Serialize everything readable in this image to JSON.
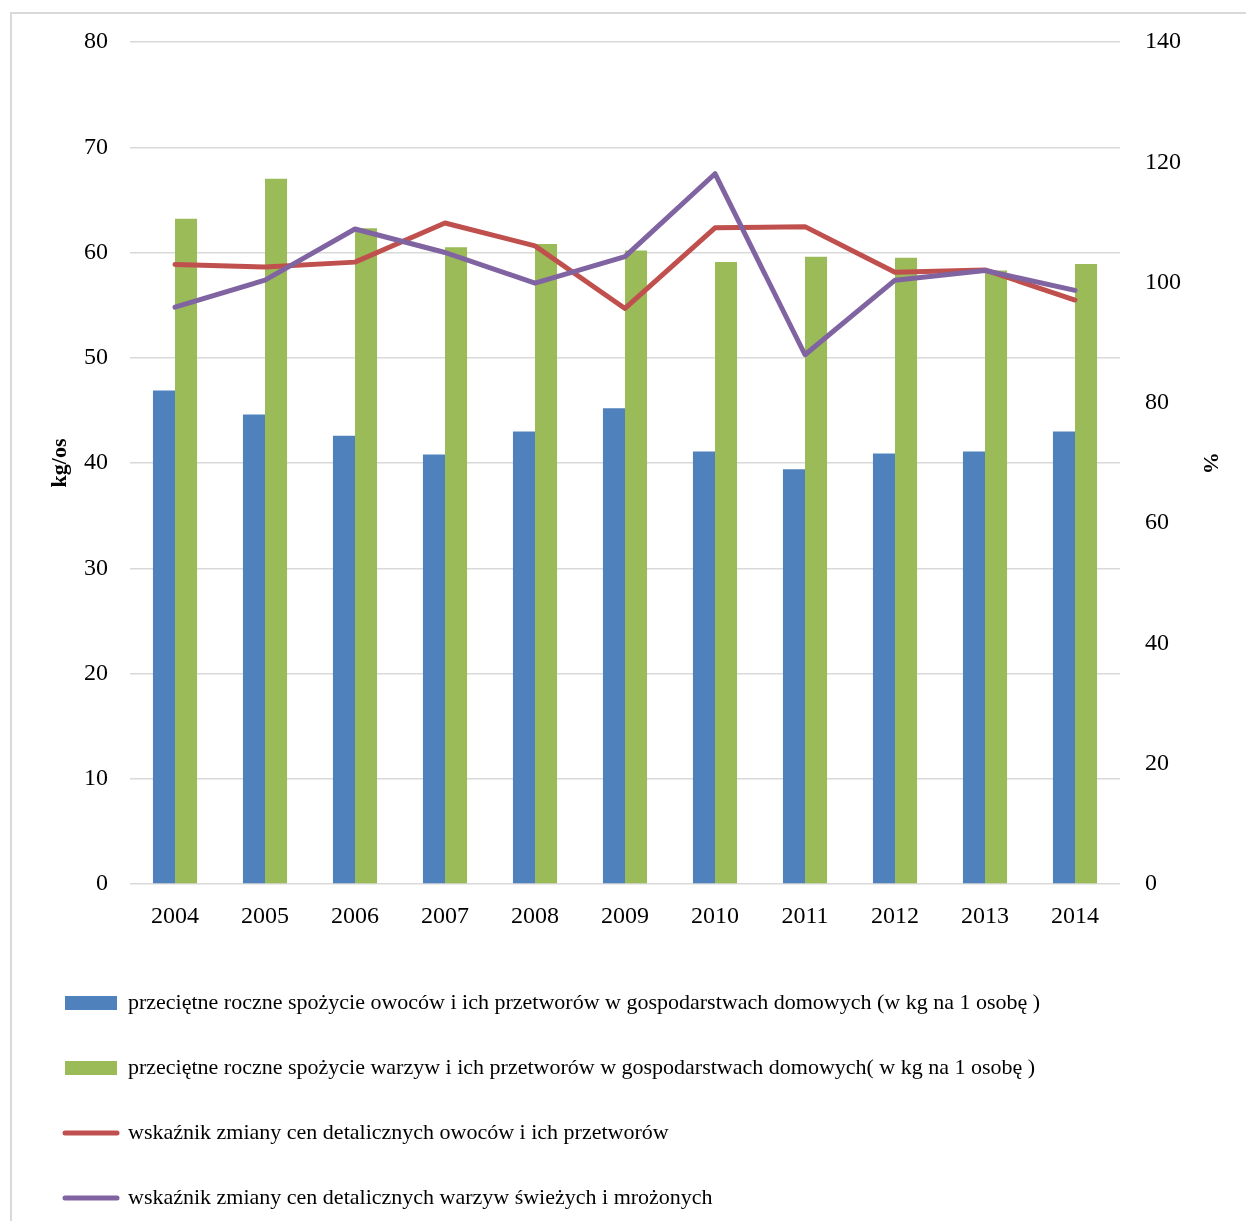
{
  "chart_data": {
    "type": "bar",
    "ylabel": "kg/os",
    "y2label": "%",
    "categories": [
      "2004",
      "2005",
      "2006",
      "2007",
      "2008",
      "2009",
      "2010",
      "2011",
      "2012",
      "2013",
      "2014"
    ],
    "series": [
      {
        "name": "przeciętne roczne spożycie owoców i ich przetworów w gospodarstwach domowych (w kg na 1 osobę )",
        "color": "#4f81bd",
        "values": [
          46.9,
          44.6,
          42.6,
          40.8,
          43.0,
          45.2,
          41.1,
          39.4,
          40.9,
          41.1,
          43.0
        ]
      },
      {
        "name": "przeciętne roczne spożycie warzyw i ich przetworów w gospodarstwach domowych( w kg na 1 osobę )",
        "color": "#9bbb59",
        "values": [
          63.2,
          67.0,
          62.3,
          60.5,
          60.8,
          60.2,
          59.1,
          59.6,
          59.5,
          58.3,
          58.9
        ]
      },
      {
        "name": "wskaźnik zmiany cen detalicznych owoców i ich przetworów",
        "type": "line",
        "axis": "y2",
        "color": "#c0504d",
        "values": [
          103.0,
          102.6,
          103.4,
          109.9,
          106.1,
          95.7,
          109.1,
          109.3,
          101.7,
          102.1,
          97.1
        ]
      },
      {
        "name": "wskaźnik zmiany cen detalicznych warzyw świeżych i mrożonych",
        "type": "line",
        "axis": "y2",
        "color": "#8064a2",
        "values": [
          95.9,
          100.4,
          108.9,
          105.0,
          99.9,
          104.3,
          118.1,
          88.0,
          100.4,
          102.0,
          98.7
        ]
      }
    ],
    "ylim": [
      0,
      80
    ],
    "yticks": [
      0,
      10,
      20,
      30,
      40,
      50,
      60,
      70,
      80
    ],
    "y2lim": [
      0,
      140
    ],
    "y2ticks": [
      0,
      20,
      40,
      60,
      80,
      100,
      120,
      140
    ],
    "grid": "y",
    "legend": "bottom",
    "line_style": "solid",
    "marker": "none"
  }
}
